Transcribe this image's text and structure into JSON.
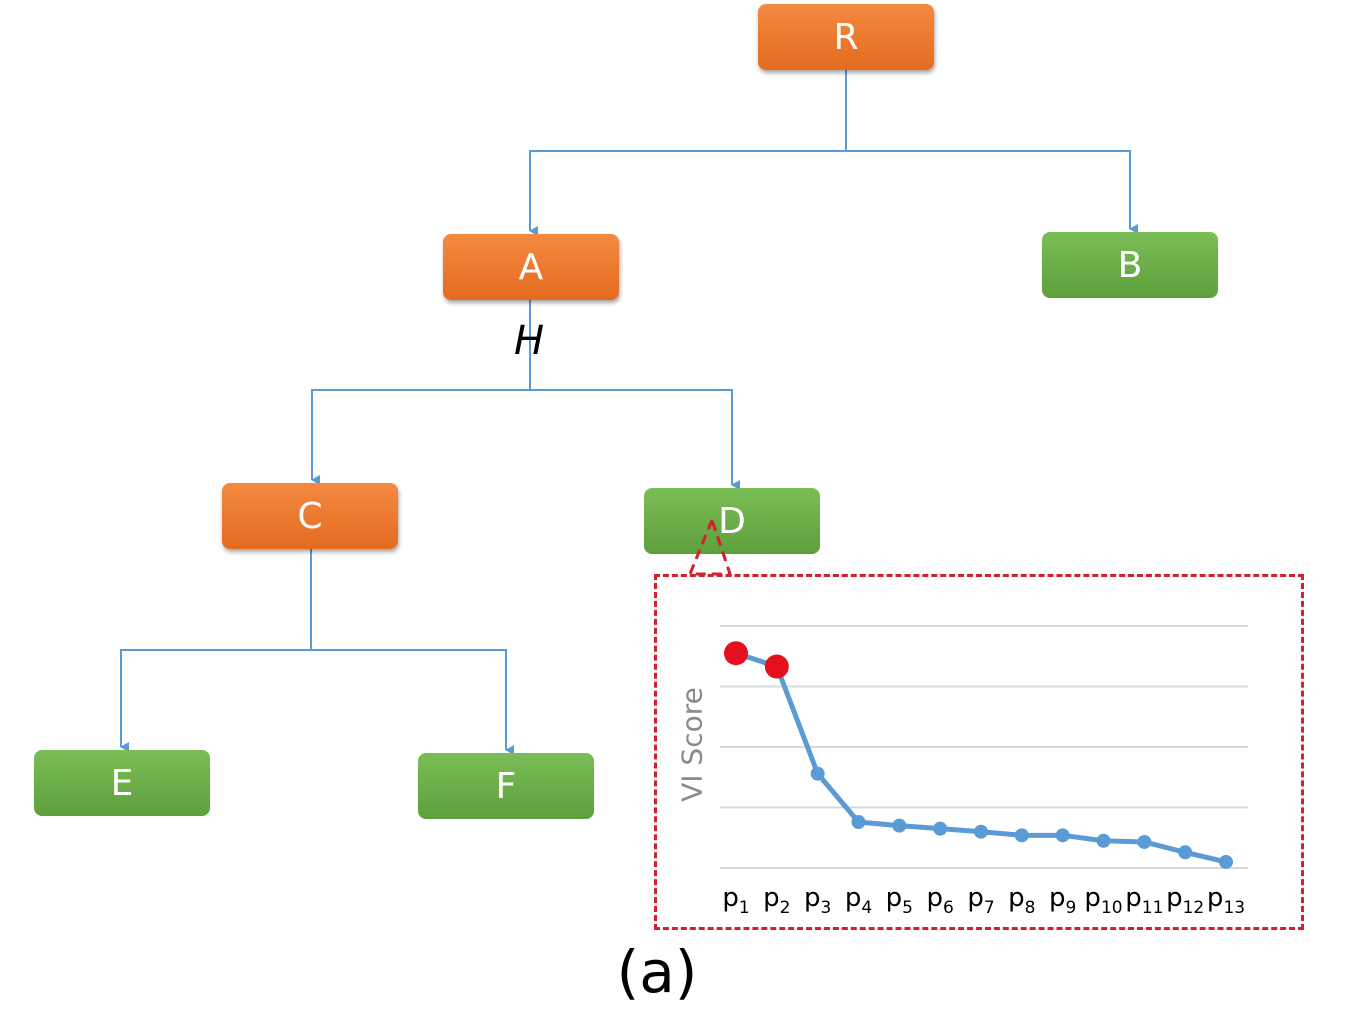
{
  "diagram": {
    "nodes": [
      {
        "id": "R",
        "label": "R",
        "color": "#ef7a31"
      },
      {
        "id": "A",
        "label": "A",
        "color": "#ef7a31"
      },
      {
        "id": "B",
        "label": "B",
        "color": "#6cae48"
      },
      {
        "id": "C",
        "label": "C",
        "color": "#ef7a31"
      },
      {
        "id": "D",
        "label": "D",
        "color": "#6cae48"
      },
      {
        "id": "E",
        "label": "E",
        "color": "#6cae48"
      },
      {
        "id": "F",
        "label": "F",
        "color": "#6cae48"
      }
    ],
    "edges": [
      [
        "R",
        "A"
      ],
      [
        "R",
        "B"
      ],
      [
        "A",
        "C"
      ],
      [
        "A",
        "D"
      ],
      [
        "C",
        "E"
      ],
      [
        "C",
        "F"
      ]
    ],
    "edge_label": "H",
    "edge_color": "#5b9bd5",
    "highlight_color": "#d4202a",
    "caption": "(a)"
  },
  "chart_data": {
    "type": "line",
    "ylabel": "VI Score",
    "x": [
      "p1",
      "p2",
      "p3",
      "p4",
      "p5",
      "p6",
      "p7",
      "p8",
      "p9",
      "p10",
      "p11",
      "p12",
      "p13"
    ],
    "x_labels": [
      {
        "base": "p",
        "sub": "1"
      },
      {
        "base": "p",
        "sub": "2"
      },
      {
        "base": "p",
        "sub": "3"
      },
      {
        "base": "p",
        "sub": "4"
      },
      {
        "base": "p",
        "sub": "5"
      },
      {
        "base": "p",
        "sub": "6"
      },
      {
        "base": "p",
        "sub": "7"
      },
      {
        "base": "p",
        "sub": "8"
      },
      {
        "base": "p",
        "sub": "9"
      },
      {
        "base": "p",
        "sub": "10"
      },
      {
        "base": "p",
        "sub": "11"
      },
      {
        "base": "p",
        "sub": "12"
      },
      {
        "base": "p",
        "sub": "13"
      }
    ],
    "values": [
      3.55,
      3.33,
      1.56,
      0.76,
      0.7,
      0.65,
      0.6,
      0.54,
      0.54,
      0.45,
      0.43,
      0.26,
      0.1
    ],
    "highlighted_indices": [
      0,
      1
    ],
    "ylim": [
      0,
      4
    ],
    "gridlines": 5,
    "grid": true,
    "line_color": "#5b9bd5",
    "highlight_color": "#e5101e"
  }
}
